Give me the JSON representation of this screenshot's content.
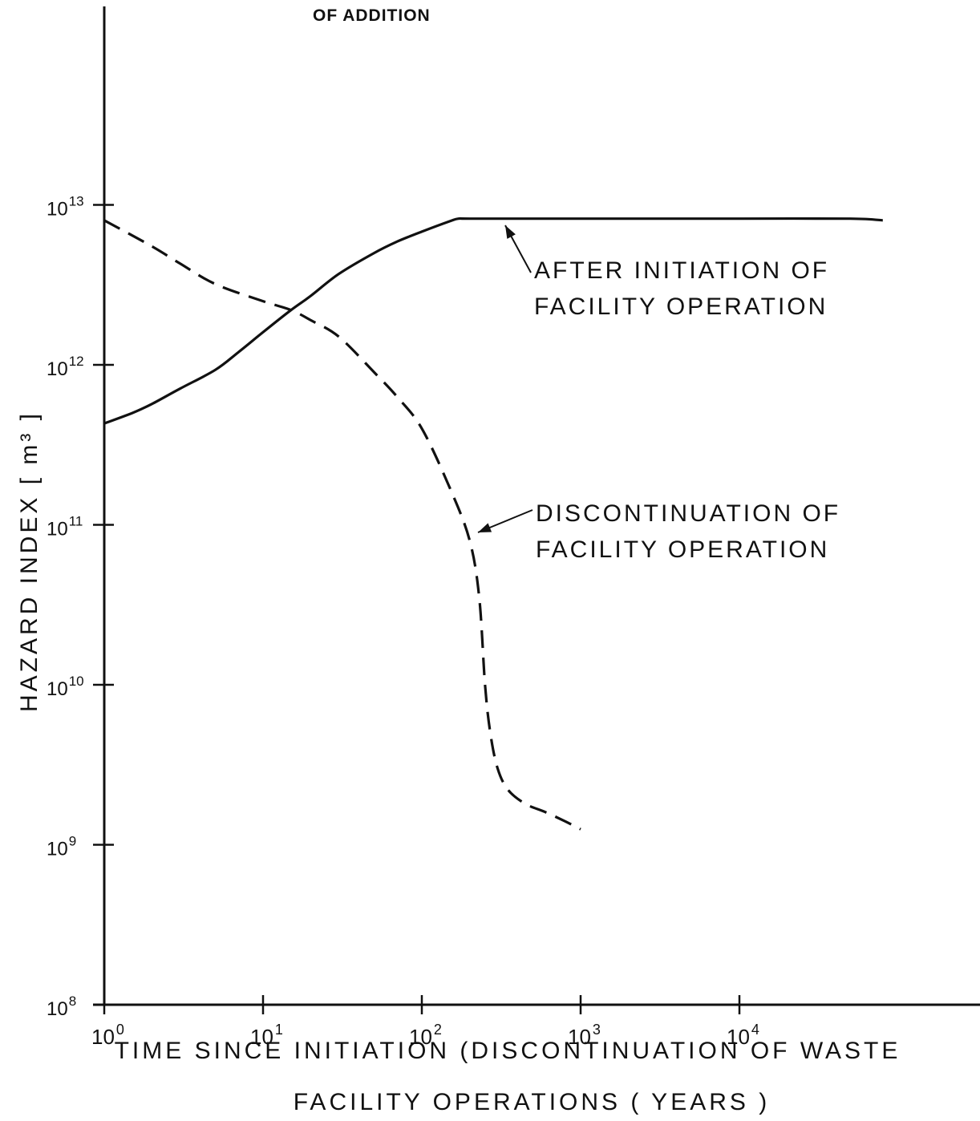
{
  "chart_data": {
    "type": "line",
    "title": "",
    "top_fragment": "OF ADDITION",
    "xlabel_line1": "TIME SINCE INITIATION (DISCONTINUATION OF WASTE",
    "xlabel_line2": "FACILITY OPERATIONS ( YEARS )",
    "ylabel": "HAZARD INDEX [ m³ ]",
    "x_scale": "log",
    "y_scale": "log",
    "xlim": [
      1,
      100000
    ],
    "ylim": [
      100000000,
      10000000000000
    ],
    "grid": false,
    "x_ticks": [
      {
        "value": 1,
        "base": "10",
        "exp": "0"
      },
      {
        "value": 10,
        "base": "10",
        "exp": "1"
      },
      {
        "value": 100,
        "base": "10",
        "exp": "2"
      },
      {
        "value": 1000,
        "base": "10",
        "exp": "3"
      },
      {
        "value": 10000,
        "base": "10",
        "exp": "4"
      }
    ],
    "y_ticks": [
      {
        "value": 100000000,
        "base": "10",
        "exp": "8"
      },
      {
        "value": 1000000000,
        "base": "10",
        "exp": "9"
      },
      {
        "value": 10000000000,
        "base": "10",
        "exp": "10"
      },
      {
        "value": 100000000000,
        "base": "10",
        "exp": "11"
      },
      {
        "value": 1000000000000,
        "base": "10",
        "exp": "12"
      },
      {
        "value": 10000000000000,
        "base": "10",
        "exp": "13"
      }
    ],
    "series": [
      {
        "name": "AFTER INITIATION OF FACILITY OPERATION",
        "style": "solid",
        "label_lines": [
          "AFTER  INITIATION OF",
          "FACILITY  OPERATION"
        ],
        "x": [
          1,
          1.5,
          2,
          3,
          5,
          7,
          10,
          15,
          20,
          30,
          50,
          70,
          100,
          150,
          170,
          200,
          500,
          1000,
          5000,
          10000,
          50000,
          80000
        ],
        "y": [
          430000000000,
          500000000000,
          570000000000,
          710000000000,
          930000000000,
          1200000000000,
          1600000000000,
          2200000000000,
          2700000000000,
          3700000000000,
          5000000000000,
          5900000000000,
          6800000000000,
          7900000000000,
          8200000000000,
          8200000000000,
          8200000000000,
          8200000000000,
          8200000000000,
          8200000000000,
          8200000000000,
          8000000000000
        ]
      },
      {
        "name": "DISCONTINUATION OF FACILITY OPERATION",
        "style": "dashed",
        "label_lines": [
          "DISCONTINUATION  OF",
          "FACILITY  OPERATION"
        ],
        "x": [
          1,
          2,
          3,
          5,
          10,
          15,
          20,
          30,
          50,
          70,
          100,
          150,
          200,
          230,
          250,
          270,
          300,
          350,
          450,
          600,
          800,
          1000
        ],
        "y": [
          8000000000000,
          5500000000000,
          4300000000000,
          3200000000000,
          2500000000000,
          2200000000000,
          1900000000000,
          1500000000000,
          900000000000,
          630000000000,
          400000000000,
          170000000000,
          80000000000,
          35000000000,
          10000000000,
          5000000000,
          3000000000,
          2200000000,
          1800000000,
          1600000000,
          1400000000,
          1250000000
        ]
      }
    ],
    "colors": {
      "ink": "#111111",
      "background": "#ffffff"
    }
  }
}
